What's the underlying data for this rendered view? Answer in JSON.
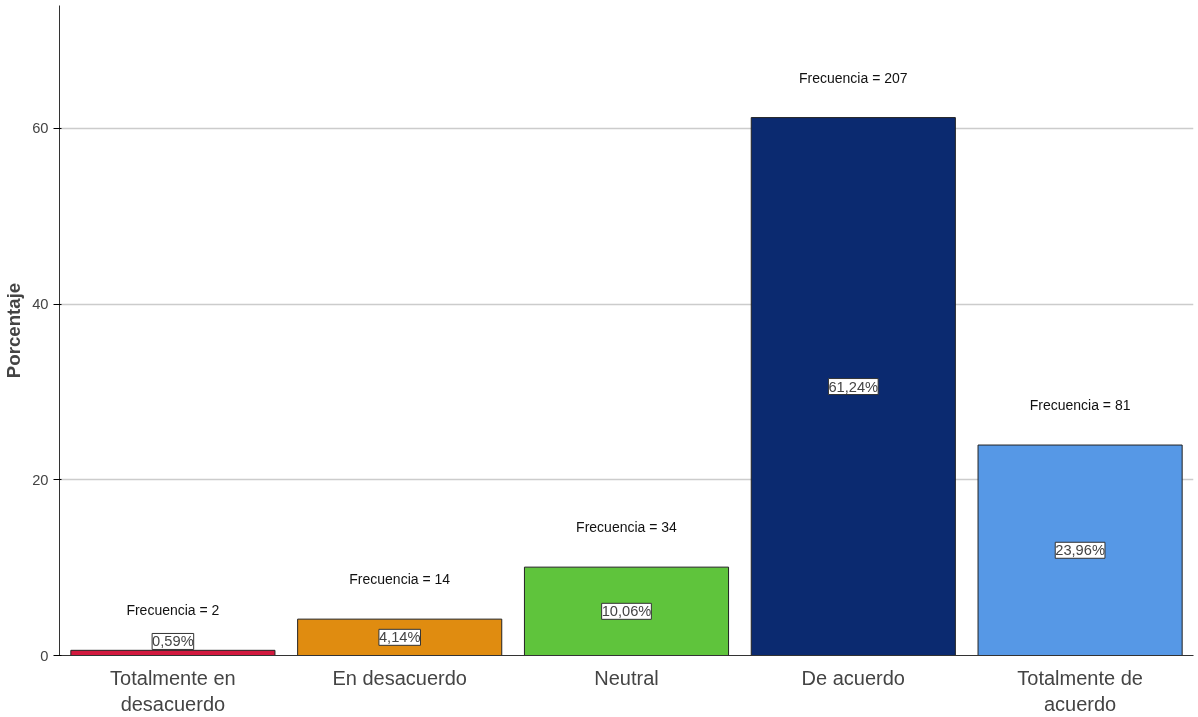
{
  "chart_data": {
    "type": "bar",
    "ylabel": "Porcentaje",
    "categories": [
      "Totalmente en desacuerdo",
      "En desacuerdo",
      "Neutral",
      "De acuerdo",
      "Totalmente de acuerdo"
    ],
    "values": [
      0.59,
      4.14,
      10.06,
      61.24,
      23.96
    ],
    "colors": [
      "#d1193e",
      "#e08c10",
      "#5fc43c",
      "#0b2a70",
      "#5698e6"
    ],
    "value_labels": [
      "0,59%",
      "4,14%",
      "10,06%",
      "61,24%",
      "23,96%"
    ],
    "annotations": [
      {
        "text": "Frecuencia = 2",
        "x": "Totalmente en desacuerdo",
        "y": 0.59
      },
      {
        "text": "Frecuencia = 14",
        "x": "En desacuerdo",
        "y": 4.14
      },
      {
        "text": "Frecuencia = 34",
        "x": "Neutral",
        "y": 10.06
      },
      {
        "text": "Frecuencia = 207",
        "x": "De acuerdo",
        "y": 61.24
      },
      {
        "text": "Frecuencia = 81",
        "x": "Totalmente de acuerdo",
        "y": 23.96
      }
    ],
    "ylim": [
      0,
      74
    ],
    "yticks": [
      0,
      20,
      40,
      60
    ],
    "grid": "y"
  }
}
